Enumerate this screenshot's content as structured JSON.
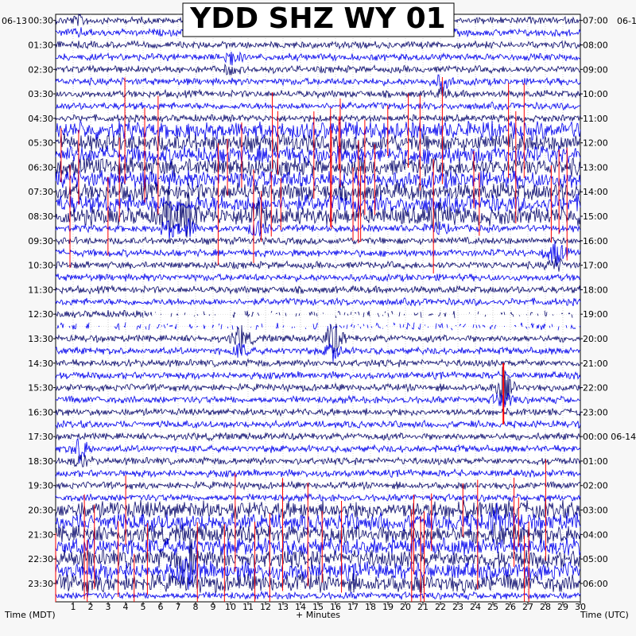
{
  "chart_data": {
    "type": "helicorder",
    "title": "YDD SHZ WY 01",
    "xlabel": "+ Minutes",
    "left_axis_label": "Time (MDT)",
    "right_axis_label": "Time (UTC)",
    "left_date": "06-13",
    "right_date": "06-1",
    "right_date_rollover": "06-14",
    "x_ticks": [
      "1",
      "2",
      "3",
      "4",
      "5",
      "6",
      "7",
      "8",
      "9",
      "10",
      "11",
      "12",
      "13",
      "14",
      "15",
      "16",
      "17",
      "18",
      "19",
      "20",
      "21",
      "22",
      "23",
      "24",
      "25",
      "26",
      "27",
      "28",
      "29",
      "30"
    ],
    "xlim": [
      0,
      30
    ],
    "rows_per_hour": 2,
    "num_traces": 48,
    "left_time_labels": [
      "00:30",
      "01:30",
      "02:30",
      "03:30",
      "04:30",
      "05:30",
      "06:30",
      "07:30",
      "08:30",
      "09:30",
      "10:30",
      "11:30",
      "12:30",
      "13:30",
      "14:30",
      "15:30",
      "16:30",
      "17:30",
      "18:30",
      "19:30",
      "20:30",
      "21:30",
      "22:30",
      "23:30"
    ],
    "right_time_labels": [
      "07:00",
      "08:00",
      "09:00",
      "10:00",
      "11:00",
      "12:00",
      "13:00",
      "14:00",
      "15:00",
      "16:00",
      "17:00",
      "18:00",
      "19:00",
      "20:00",
      "21:00",
      "22:00",
      "23:00",
      "00:00 06-14",
      "01:00",
      "02:00",
      "03:00",
      "04:00",
      "05:00",
      "06:00"
    ],
    "trace_colors": [
      "#0a0a6e",
      "#0000ee"
    ],
    "clip_color": "#ff0000",
    "grid": true,
    "events": [
      {
        "trace": 0,
        "minute": 1.4,
        "amplitude": 0.35
      },
      {
        "trace": 3,
        "minute": 10.0,
        "amplitude": 0.6
      },
      {
        "trace": 5,
        "minute": 22.1,
        "amplitude": 0.6
      },
      {
        "trace": 16,
        "minute": 21.8,
        "amplitude": 0.9
      },
      {
        "trace": 16,
        "minute": 6.5,
        "amplitude": 1.4
      },
      {
        "trace": 16,
        "minute": 11.5,
        "amplitude": 1.2
      },
      {
        "trace": 16,
        "minute": 7.6,
        "amplitude": 1.3
      },
      {
        "trace": 19,
        "minute": 28.6,
        "amplitude": 1.0
      },
      {
        "trace": 26,
        "minute": 15.9,
        "amplitude": 1.3
      },
      {
        "trace": 26,
        "minute": 10.6,
        "amplitude": 1.0
      },
      {
        "trace": 30,
        "minute": 25.6,
        "amplitude": 1.5
      },
      {
        "trace": 35,
        "minute": 1.4,
        "amplitude": 0.9
      },
      {
        "trace": 41,
        "minute": 25.3,
        "amplitude": 1.0
      },
      {
        "trace": 44,
        "minute": 7.6,
        "amplitude": 1.6
      }
    ],
    "high_noise_traces": [
      9,
      10,
      11,
      12,
      13,
      14,
      15,
      16,
      40,
      41,
      42,
      43,
      44,
      45,
      46
    ],
    "gap_traces": [
      24,
      25
    ]
  }
}
